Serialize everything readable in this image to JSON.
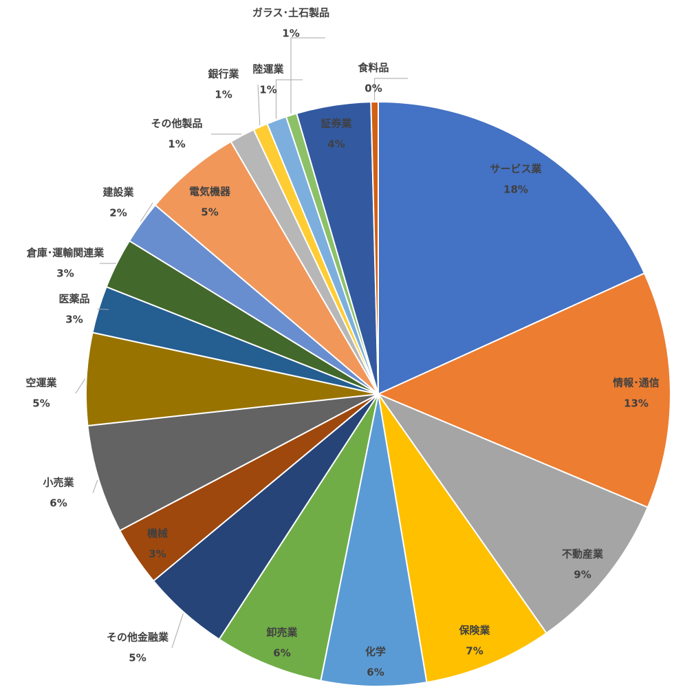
{
  "chart_data": {
    "type": "pie",
    "categories": [
      "サービス業",
      "情報･通信",
      "不動産業",
      "保険業",
      "化学",
      "卸売業",
      "その他金融業",
      "機械",
      "小売業",
      "空運業",
      "医薬品",
      "倉庫･運輸関連業",
      "建設業",
      "電気機器",
      "その他製品",
      "銀行業",
      "陸運業",
      "ガラス･土石製品",
      "証券業",
      "食料品"
    ],
    "values": [
      18.2,
      13.1,
      8.9,
      7.1,
      5.8,
      6.0,
      4.8,
      3.3,
      6.0,
      5.1,
      2.6,
      2.8,
      2.4,
      5.4,
      1.4,
      0.8,
      1.1,
      0.6,
      4.1,
      0.4
    ],
    "value_labels": [
      "18%",
      "13%",
      "9%",
      "7%",
      "6%",
      "6%",
      "5%",
      "3%",
      "6%",
      "5%",
      "3%",
      "3%",
      "2%",
      "5%",
      "1%",
      "1%",
      "1%",
      "1%",
      "4%",
      "0%"
    ],
    "colors": [
      "#4472c4",
      "#ed7d31",
      "#a5a5a5",
      "#ffc000",
      "#5b9bd5",
      "#70ad47",
      "#264478",
      "#9e480e",
      "#636363",
      "#997300",
      "#255e91",
      "#43682b",
      "#698ed0",
      "#f1975a",
      "#b7b7b7",
      "#ffcd33",
      "#7cafdd",
      "#8cc168",
      "#335aa1",
      "#d26012"
    ]
  }
}
